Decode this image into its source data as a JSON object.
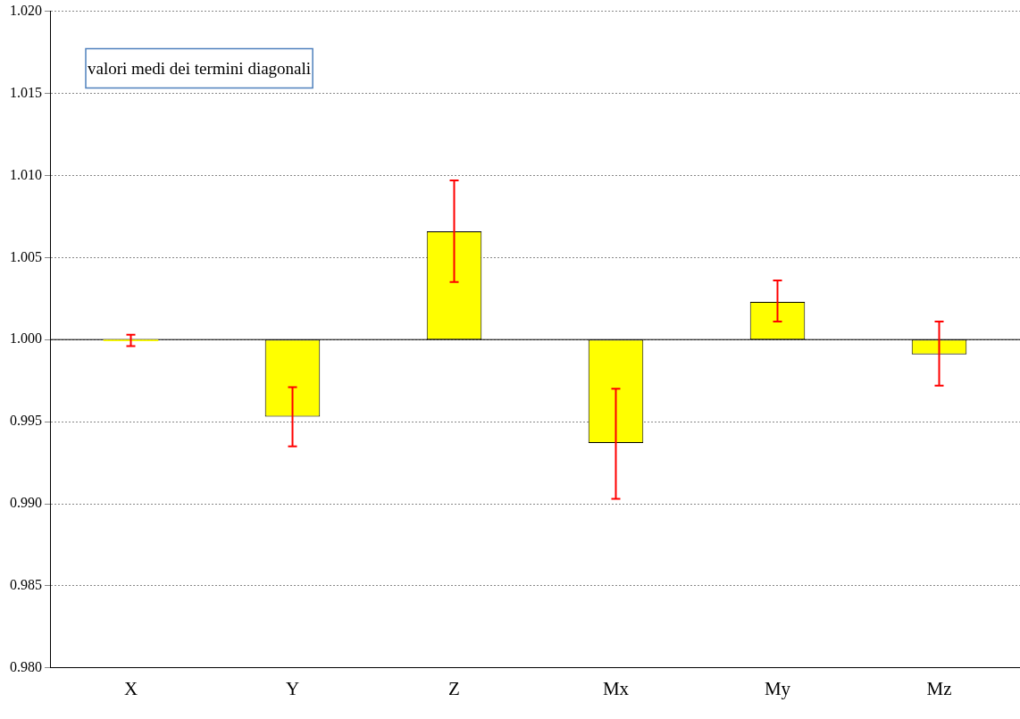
{
  "chart_data": {
    "type": "bar",
    "categories": [
      "X",
      "Y",
      "Z",
      "Mx",
      "My",
      "Mz"
    ],
    "base": [
      1,
      1,
      1,
      1,
      1,
      1
    ],
    "values": [
      -0.0001,
      -0.0047,
      0.0066,
      -0.0063,
      0.0023,
      -0.0009
    ],
    "errors": [
      [
        0.9996,
        1.0003
      ],
      [
        0.9935,
        0.9971
      ],
      [
        1.0035,
        1.0097
      ],
      [
        0.9903,
        0.997
      ],
      [
        1.0011,
        1.0036
      ],
      [
        0.9972,
        1.0011
      ]
    ],
    "color": "#ffff00",
    "ylim": [
      0.98,
      1.02
    ],
    "yticks": [
      {
        "value": 0.98,
        "label": "0.980"
      },
      {
        "value": 0.985,
        "label": "0.985"
      },
      {
        "value": 0.99,
        "label": "0.990"
      },
      {
        "value": 0.995,
        "label": "0.995"
      },
      {
        "value": 1,
        "label": "1.000"
      },
      {
        "value": 1.005,
        "label": "1.005"
      },
      {
        "value": 1.01,
        "label": "1.010"
      },
      {
        "value": 1.015,
        "label": "1.015"
      },
      {
        "value": 1.02,
        "label": "1.020"
      }
    ],
    "grid": "y",
    "legend": false,
    "ref_lines": [
      {
        "axis": "y",
        "value": 1,
        "color": "#000000"
      }
    ],
    "annotations": [
      "valori medi dei termini diagonali"
    ]
  }
}
